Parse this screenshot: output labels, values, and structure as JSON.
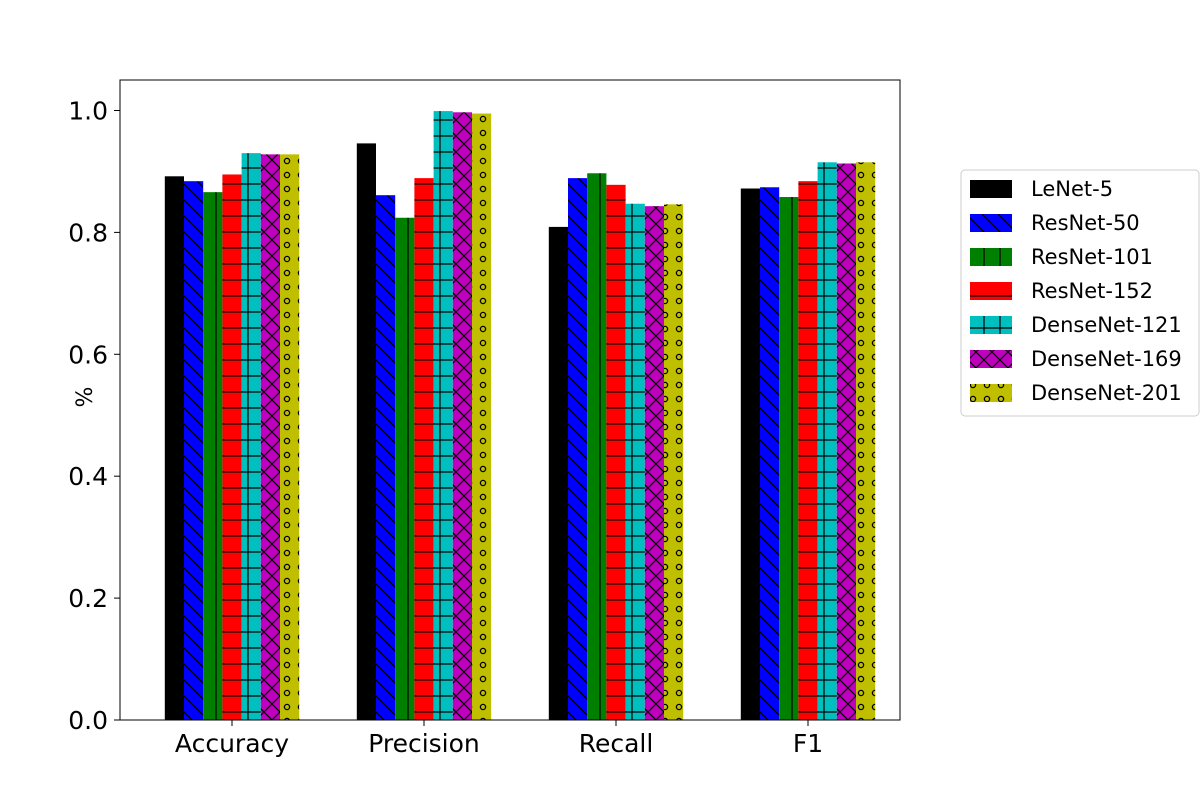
{
  "chart_data": {
    "type": "bar",
    "categories": [
      "Accuracy",
      "Precision",
      "Recall",
      "F1"
    ],
    "ylabel": "%",
    "ylim": [
      0,
      1.05
    ],
    "yticks": [
      "0.0",
      "0.2",
      "0.4",
      "0.6",
      "0.8",
      "1.0"
    ],
    "ytick_values": [
      0,
      0.2,
      0.4,
      0.6,
      0.8,
      1.0
    ],
    "legend_position": "right",
    "series": [
      {
        "name": "LeNet-5",
        "color": "#000000",
        "hatch": "none",
        "values": [
          0.892,
          0.946,
          0.809,
          0.872
        ]
      },
      {
        "name": "ResNet-50",
        "color": "#0000ff",
        "hatch": "back-diagonal",
        "values": [
          0.884,
          0.861,
          0.889,
          0.874
        ]
      },
      {
        "name": "ResNet-101",
        "color": "#008000",
        "hatch": "vertical",
        "values": [
          0.866,
          0.824,
          0.897,
          0.858
        ]
      },
      {
        "name": "ResNet-152",
        "color": "#ff0000",
        "hatch": "horizontal",
        "values": [
          0.895,
          0.889,
          0.878,
          0.884
        ]
      },
      {
        "name": "DenseNet-121",
        "color": "#00bfbf",
        "hatch": "grid",
        "values": [
          0.93,
          0.999,
          0.847,
          0.915
        ]
      },
      {
        "name": "DenseNet-169",
        "color": "#bf00bf",
        "hatch": "cross-diagonal",
        "values": [
          0.928,
          0.997,
          0.843,
          0.913
        ]
      },
      {
        "name": "DenseNet-201",
        "color": "#bfbf00",
        "hatch": "circles",
        "values": [
          0.928,
          0.995,
          0.846,
          0.915
        ]
      }
    ]
  }
}
